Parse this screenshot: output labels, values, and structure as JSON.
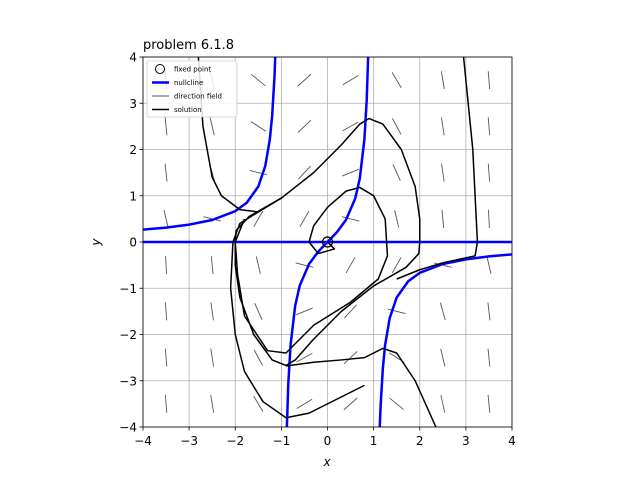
{
  "chart_data": {
    "type": "phase",
    "title": "problem 6.1.8",
    "x_label": "x",
    "y_label": "y",
    "xlim": [
      -4,
      4
    ],
    "ylim": [
      -4,
      4
    ],
    "xticks": [
      {
        "value": -4,
        "label": "−4"
      },
      {
        "value": -3,
        "label": "−3"
      },
      {
        "value": -2,
        "label": "−2"
      },
      {
        "value": -1,
        "label": "−1"
      },
      0,
      1,
      2,
      3,
      4
    ],
    "yticks": [
      {
        "value": -4,
        "label": "−4"
      },
      {
        "value": -3,
        "label": "−3"
      },
      {
        "value": -2,
        "label": "−2"
      },
      {
        "value": -1,
        "label": "−1"
      },
      0,
      1,
      2,
      3,
      4
    ],
    "grid": true,
    "legend": "upper left",
    "fixed_point": {
      "name": "fixed point",
      "color": "#000000",
      "x": 0,
      "y": 0
    },
    "direction_field": {
      "name": "direction field",
      "color": "#555555",
      "x": [
        -3.5,
        -2.5,
        -1.5,
        -0.5,
        0.5,
        1.5,
        2.5,
        3.5
      ],
      "y": [
        -3.5,
        -2.5,
        -1.5,
        -0.5,
        0.5,
        1.5,
        2.5,
        3.5
      ],
      "angles": [
        [
          -85.3,
          -85.5,
          -85.8,
          -86.9,
          -76.8,
          -83.6,
          -84.2,
          -84.4
        ],
        [
          -80.5,
          -80.9,
          -81.8,
          -84.4,
          -14,
          -74.4,
          -76.8,
          -77.6
        ],
        [
          -59.2,
          -61.6,
          -66,
          -76.8,
          60.3,
          -14,
          -33,
          -39.4
        ],
        [
          31.3,
          28.8,
          22.6,
          -14,
          60.3,
          47.3,
          43.5,
          41.8
        ],
        [
          41.8,
          43.5,
          47.3,
          60.3,
          -14,
          22.6,
          28.8,
          31.3
        ],
        [
          -39.4,
          -33,
          -14,
          60.3,
          -76.8,
          -66,
          -61.6,
          -59.2
        ],
        [
          -77.6,
          -76.8,
          -74.4,
          -14,
          -84.4,
          -81.8,
          -80.9,
          -80.5
        ],
        [
          -84.4,
          -84.2,
          -83.6,
          -76.8,
          -86.9,
          -85.8,
          -85.5,
          -85.3
        ]
      ]
    },
    "series": [
      {
        "name": "nullcline",
        "color": "#0000ff",
        "x": [
          -4,
          4,
          null,
          -4,
          -3.5,
          -3,
          -2.5,
          -2,
          -1.75,
          -1.5,
          -1.35,
          -1.25,
          -1.2,
          -1.15,
          -1.13,
          null,
          -0.89,
          -0.85,
          -0.8,
          -0.7,
          -0.6,
          -0.4,
          -0.2,
          0,
          0.2,
          0.4,
          0.6,
          0.7,
          0.8,
          0.85,
          0.89,
          null,
          1.13,
          1.15,
          1.2,
          1.25,
          1.35,
          1.5,
          1.75,
          2,
          2.5,
          3,
          3.5,
          4
        ],
        "y": [
          0,
          0,
          null,
          0.267,
          0.311,
          0.375,
          0.476,
          0.667,
          0.848,
          1.2,
          1.64,
          2.222,
          2.727,
          3.566,
          4.08,
          null,
          -4.28,
          -3.063,
          -2.222,
          -1.373,
          -0.938,
          -0.476,
          -0.208,
          0,
          0.208,
          0.476,
          0.938,
          1.373,
          2.222,
          3.063,
          4.28,
          null,
          -4.08,
          -3.566,
          -2.727,
          -2.222,
          -1.64,
          -1.2,
          -0.848,
          -0.667,
          -0.476,
          -0.375,
          -0.311,
          -0.267
        ]
      },
      {
        "name": "solution",
        "color": "#000000",
        "x": [
          2,
          1.98,
          1.7,
          1,
          0.3,
          -0.3,
          -0.7,
          -0.9,
          -1.2,
          -1.6,
          -1.9,
          -2,
          -2,
          -1.98,
          -1.7,
          -1,
          -0.3,
          0.3,
          0.7,
          0.9,
          1.2,
          1.6,
          1.9,
          2,
          2,
          null,
          0,
          0.15,
          -0.2,
          -0.4,
          -0.3,
          0,
          0.4,
          0.7,
          1,
          1.25,
          1.3,
          1.1,
          0.5,
          -0.3,
          -0.9,
          -1.3,
          -1.8,
          -1.95,
          -2,
          -1.8,
          null,
          -2.8,
          -2.7,
          -2.5,
          -2.3,
          -1.9,
          -1.5,
          -1,
          null,
          2.95,
          3.15,
          3.25,
          3.2,
          2.5,
          2,
          1.5,
          null,
          2.35,
          1.9,
          1.5,
          1.2,
          0.8,
          0.3,
          -0.3,
          -0.9,
          null,
          0.8,
          0.2,
          -0.4,
          -0.9,
          -1.4,
          -1.8,
          -2,
          -2.1,
          -2.05,
          -1.9,
          -1.5
        ],
        "y": [
          0,
          -0.25,
          -0.55,
          -0.95,
          -1.5,
          -2.1,
          -2.55,
          -2.67,
          -2.55,
          -2,
          -1.2,
          -0.5,
          0,
          0.25,
          0.55,
          0.95,
          1.5,
          2.1,
          2.55,
          2.67,
          2.55,
          2,
          1.2,
          0.5,
          0,
          null,
          0,
          -0.15,
          -0.25,
          0,
          0.35,
          0.75,
          1.1,
          1.18,
          1,
          0.5,
          -0.3,
          -0.8,
          -1.3,
          -1.8,
          -2.4,
          -2.35,
          -1.6,
          -0.7,
          0,
          0.5,
          null,
          4,
          2.5,
          1.4,
          1,
          0.7,
          0.65,
          0.95,
          null,
          4,
          2,
          0,
          -0.3,
          -0.45,
          -0.6,
          -0.8,
          null,
          -4,
          -3,
          -2.4,
          -2.3,
          -2.5,
          -2.55,
          -2.6,
          -2.68,
          null,
          -3.1,
          -3.4,
          -3.7,
          -3.8,
          -3.45,
          -2.8,
          -2,
          -1,
          0,
          0.4,
          0.65
        ]
      }
    ]
  }
}
